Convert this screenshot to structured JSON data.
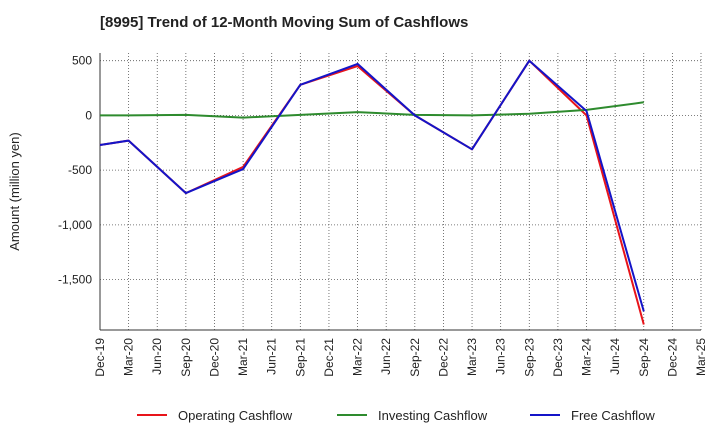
{
  "title": "[8995]  Trend of 12-Month Moving Sum of Cashflows",
  "chart_data": {
    "type": "line",
    "title": "[8995]  Trend of 12-Month Moving Sum of Cashflows",
    "xlabel": "",
    "ylabel": "Amount (million yen)",
    "categories": [
      "Dec-19",
      "Mar-20",
      "Jun-20",
      "Sep-20",
      "Dec-20",
      "Mar-21",
      "Jun-21",
      "Sep-21",
      "Dec-21",
      "Mar-22",
      "Jun-22",
      "Sep-22",
      "Dec-22",
      "Mar-23",
      "Jun-23",
      "Sep-23",
      "Dec-23",
      "Mar-24",
      "Jun-24",
      "Sep-24",
      "Dec-24",
      "Mar-25"
    ],
    "ylim": [
      -1960,
      570
    ],
    "yticks": [
      500,
      0,
      -500,
      -1000,
      -1500
    ],
    "ytick_labels": [
      "500",
      "0",
      "-500",
      "-1,000",
      "-1,500"
    ],
    "grid": true,
    "legend_position": "bottom",
    "series": [
      {
        "name": "Operating Cashflow",
        "color": "#e8141a",
        "values": [
          -270,
          -230,
          null,
          -710,
          null,
          -470,
          null,
          280,
          null,
          450,
          null,
          0,
          null,
          -310,
          null,
          500,
          null,
          0,
          null,
          -1910,
          null,
          null
        ]
      },
      {
        "name": "Investing Cashflow",
        "color": "#2e8b2e",
        "values": [
          0,
          0,
          null,
          5,
          null,
          -20,
          null,
          5,
          null,
          30,
          null,
          5,
          null,
          0,
          null,
          15,
          null,
          50,
          null,
          120,
          null,
          null
        ]
      },
      {
        "name": "Free Cashflow",
        "color": "#1414c8",
        "values": [
          -270,
          -230,
          null,
          -710,
          null,
          -490,
          null,
          280,
          null,
          470,
          null,
          0,
          null,
          -310,
          null,
          500,
          null,
          40,
          null,
          -1790,
          null,
          null
        ]
      }
    ]
  }
}
